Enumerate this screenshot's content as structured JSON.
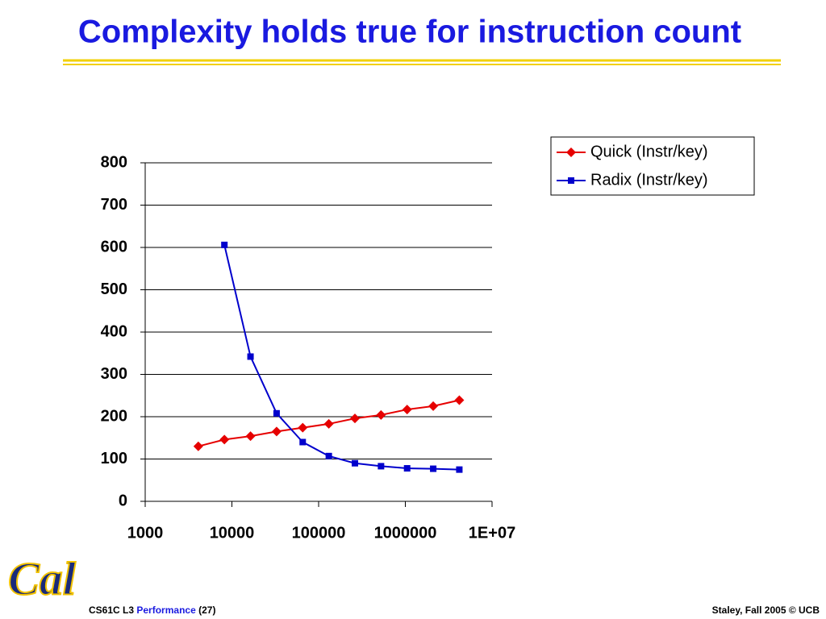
{
  "title": "Complexity holds true for instruction count",
  "chart_data": {
    "type": "line",
    "x": [
      4096,
      8192,
      16384,
      32768,
      65536,
      131072,
      262144,
      524288,
      1048576,
      2097152,
      4194304
    ],
    "series": [
      {
        "name": "Quick (Instr/key)",
        "color": "#e60000",
        "marker": "diamond",
        "values": [
          130,
          146,
          154,
          165,
          174,
          183,
          196,
          204,
          217,
          225,
          239
        ]
      },
      {
        "name": "Radix (Instr/key)",
        "color": "#0000cc",
        "marker": "square",
        "values": [
          null,
          606,
          342,
          208,
          140,
          107,
          90,
          83,
          78,
          77,
          75
        ]
      }
    ],
    "xscale": "log",
    "xlim": [
      1000,
      10000000
    ],
    "xticks": [
      1000,
      10000,
      100000,
      1000000,
      {
        "value": 10000000,
        "label": "1E+07"
      }
    ],
    "ylim": [
      0,
      800
    ],
    "yticks": [
      0,
      100,
      200,
      300,
      400,
      500,
      600,
      700,
      800
    ],
    "grid": true,
    "legend": "top-right"
  },
  "footer": {
    "course": "CS61C L3",
    "topic": "Performance",
    "page": "(27)",
    "credit": "Staley, Fall 2005 © UCB"
  },
  "logo": "Cal"
}
